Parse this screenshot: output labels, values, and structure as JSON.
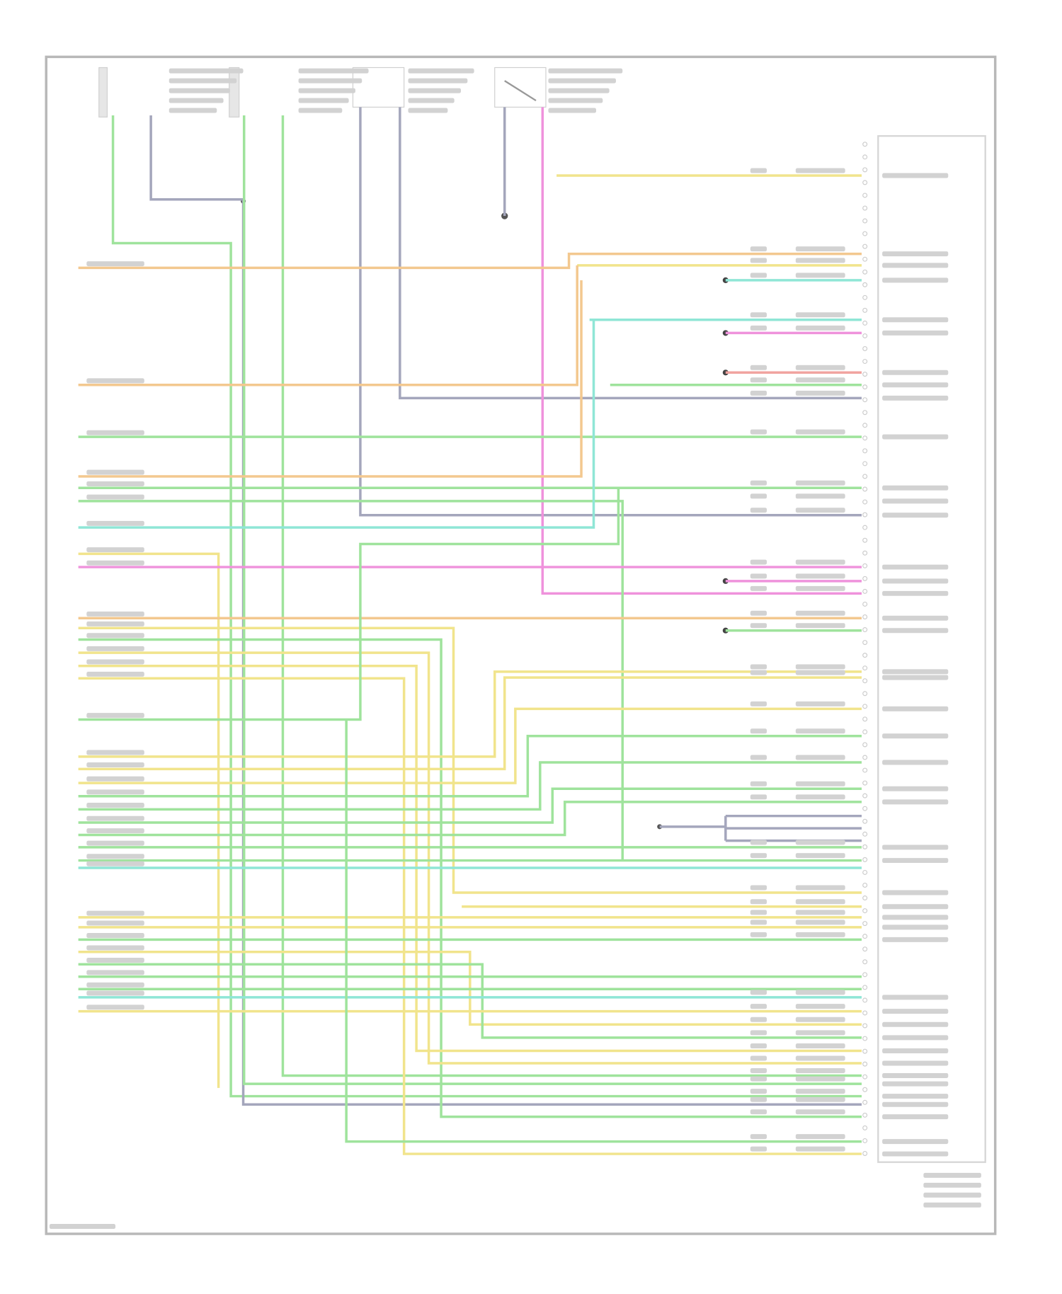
{
  "diagram": {
    "title": "",
    "wire_colors": {
      "orange": "#f3c88f",
      "yellow": "#f1e48c",
      "green": "#9fe39c",
      "cyan": "#8fe6d6",
      "pink": "#ef92dc",
      "gray": "#a4a6bc",
      "red": "#f1a3a0",
      "frame": "#b8b8b8",
      "label": "#d2d2d2"
    },
    "components": [
      {
        "name": "sensor-1",
        "type": "sensor"
      },
      {
        "name": "sensor-2",
        "type": "sensor"
      },
      {
        "name": "sensor-3",
        "type": "sensor"
      },
      {
        "name": "switch-1",
        "type": "switch"
      },
      {
        "name": "control-module",
        "type": "module-connector"
      }
    ]
  }
}
